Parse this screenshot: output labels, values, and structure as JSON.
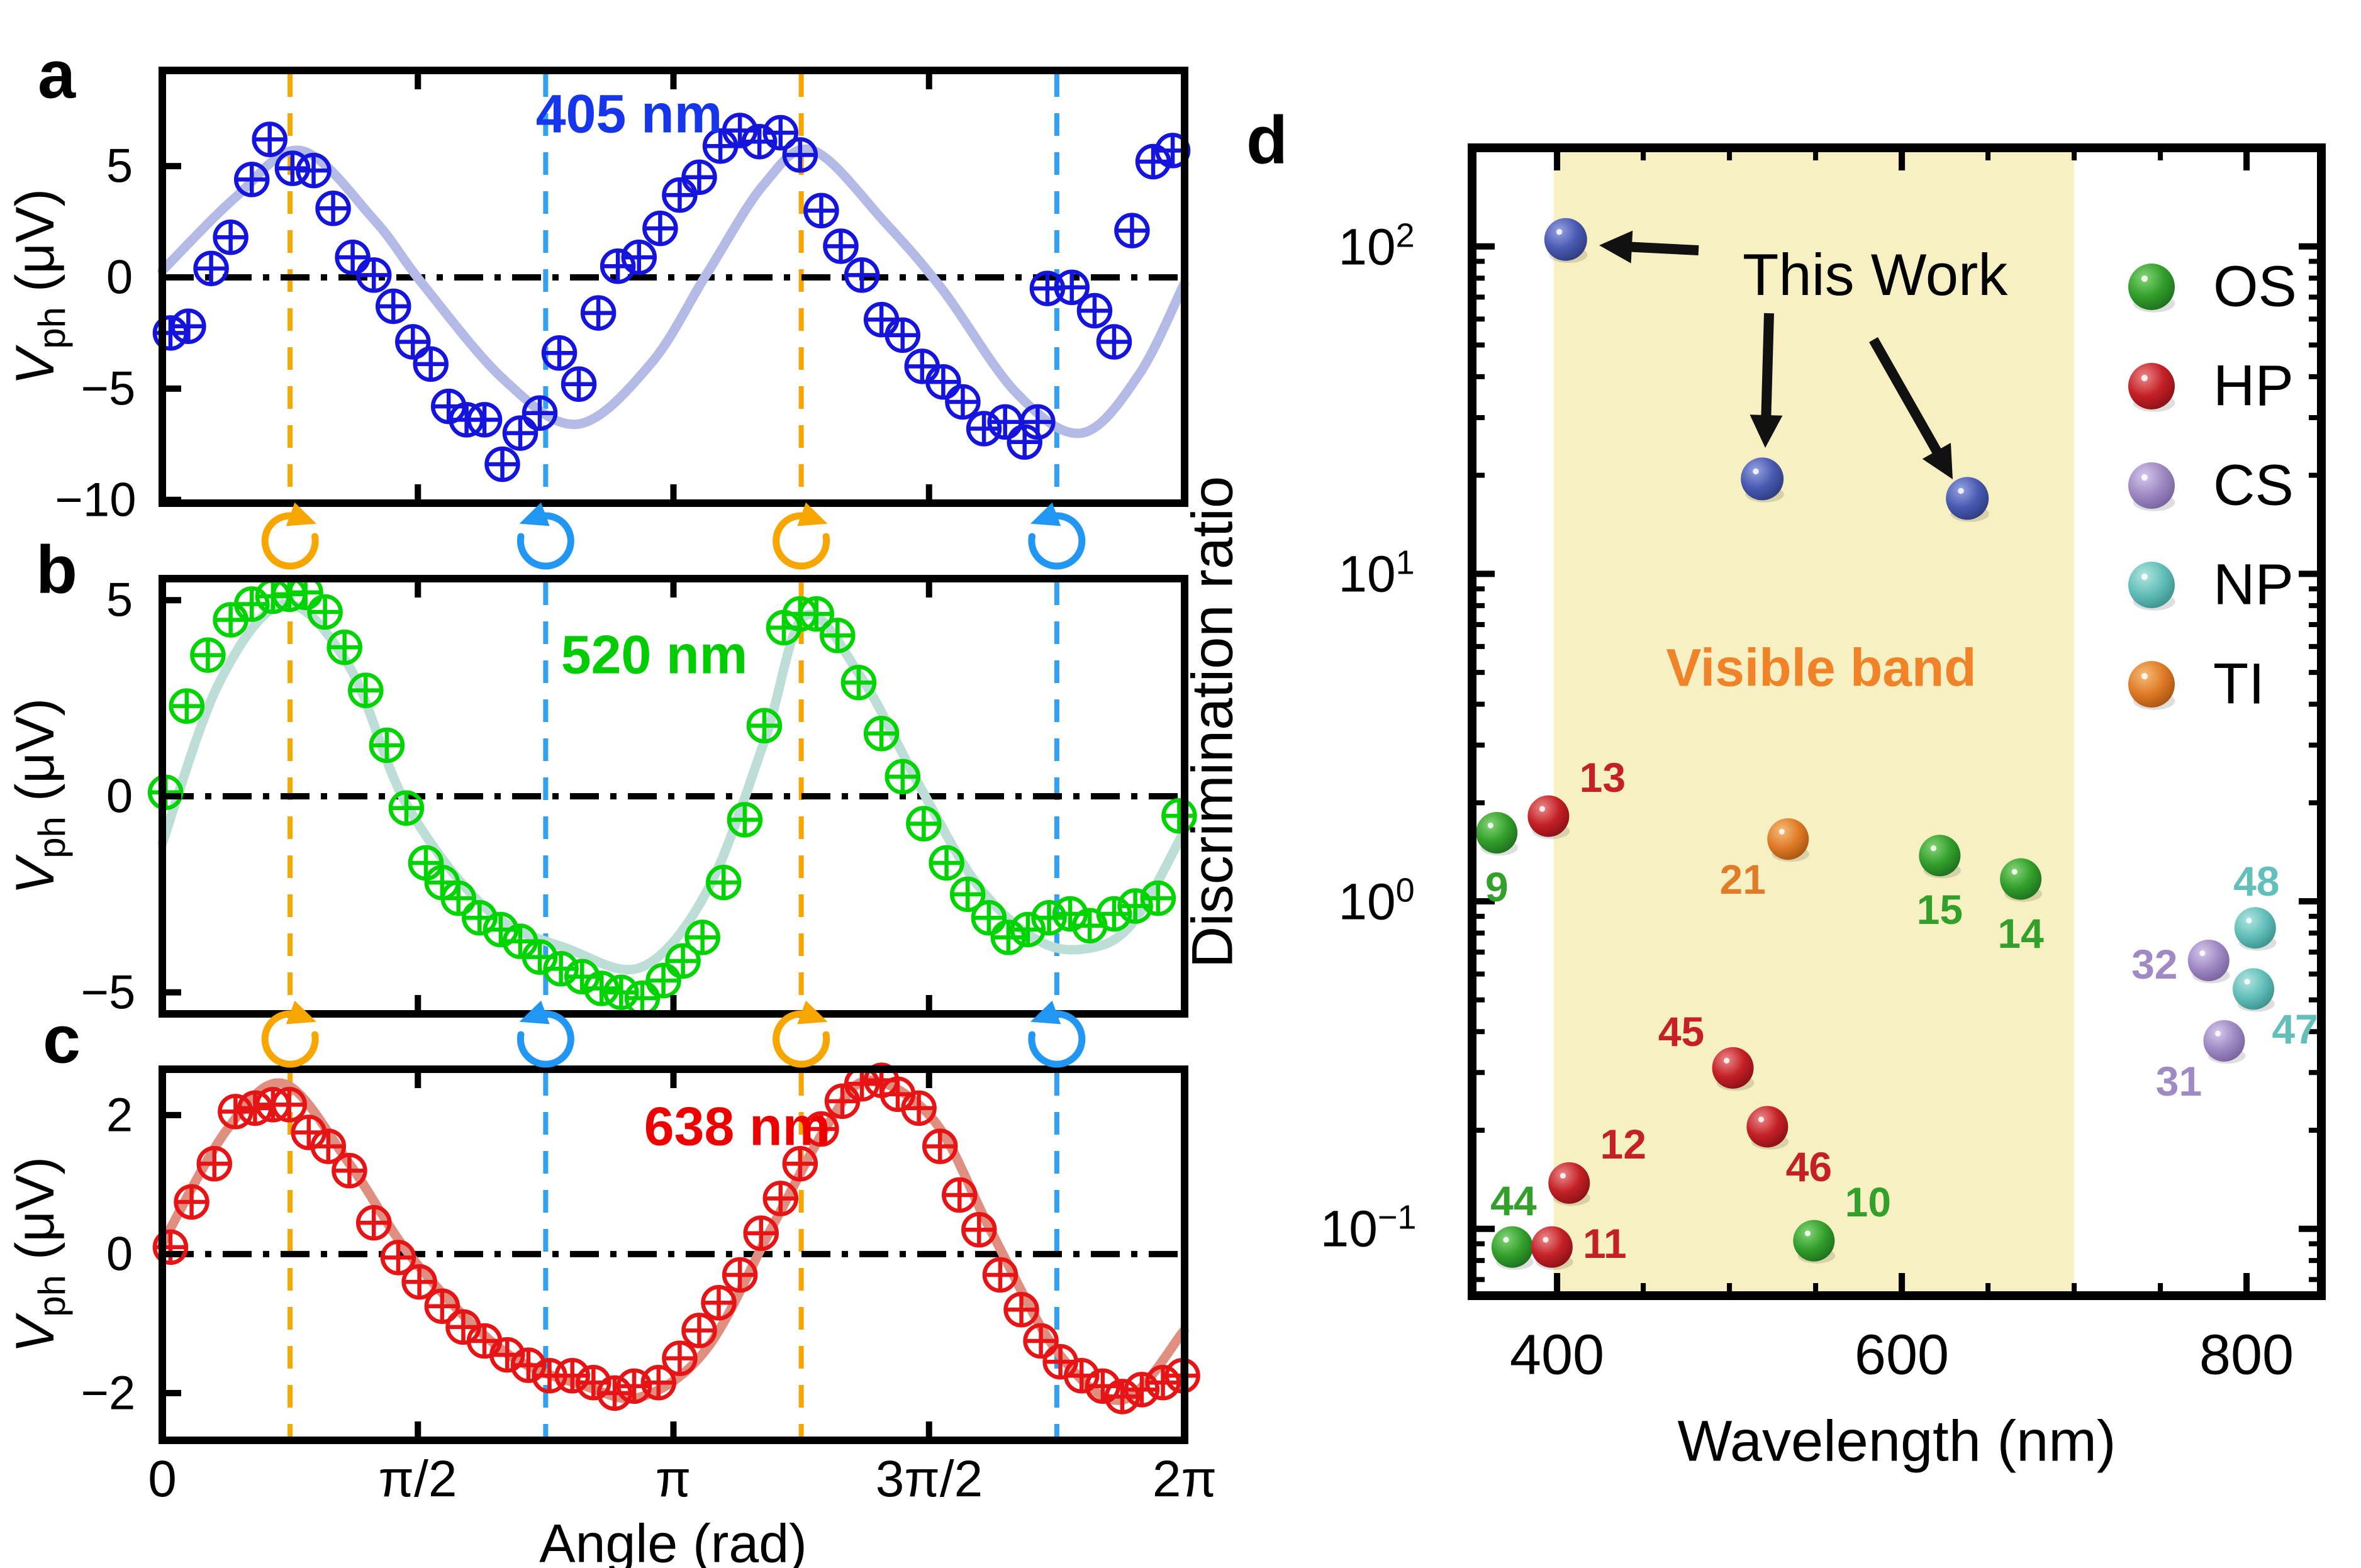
{
  "panel_letters": {
    "a": "a",
    "b": "b",
    "c": "c",
    "d": "d"
  },
  "ui": {
    "ylabel_v": "V",
    "ylabel_sub": "ph",
    "ylabel_unit": " (μV)",
    "angle_xlabel": "Angle (rad)",
    "wavelength_xlabel": "Wavelength (nm)",
    "discrimination_ylabel": "Discrimination ratio",
    "this_work_label": "This Work",
    "visible_band_label": "Visible band",
    "a_yticks": [
      "5",
      "0",
      "−5",
      "−10"
    ],
    "b_yticks": [
      "5",
      "0",
      "−5"
    ],
    "c_yticks": [
      "2",
      "0",
      "−2"
    ],
    "c_xticks": [
      "0",
      "π/2",
      "π",
      "3π/2",
      "2π"
    ],
    "d_xticks": [
      "400",
      "600",
      "800"
    ],
    "d_ytick_base": "10",
    "d_ytick_exponents": [
      "2",
      "1",
      "0",
      "−1"
    ],
    "legend": [
      "OS",
      "HP",
      "CS",
      "NP",
      "TI"
    ]
  },
  "chart_data": [
    {
      "id": "a",
      "type": "scatter+line",
      "title": "405 nm",
      "title_color": "#1536ea",
      "marker_color": "#1414dd",
      "curve_color": "#b4bae6",
      "xlabel": "Angle (rad)",
      "ylabel": "Vph (μV)",
      "xlim": [
        0,
        6.2832
      ],
      "ylim": [
        -10.15,
        9.3
      ],
      "yticks": [
        5,
        0,
        -5,
        -10
      ],
      "guide_orange_x": [
        0.7854,
        3.927
      ],
      "guide_blue_x": [
        2.3562,
        5.4978
      ],
      "points": [
        [
          0.05,
          -2.5
        ],
        [
          0.16,
          -2.2
        ],
        [
          0.3,
          0.4
        ],
        [
          0.42,
          1.8
        ],
        [
          0.55,
          4.4
        ],
        [
          0.66,
          6.2
        ],
        [
          0.8,
          4.9
        ],
        [
          0.93,
          4.8
        ],
        [
          1.05,
          3.1
        ],
        [
          1.17,
          0.9
        ],
        [
          1.3,
          0.1
        ],
        [
          1.42,
          -1.3
        ],
        [
          1.54,
          -2.9
        ],
        [
          1.65,
          -3.9
        ],
        [
          1.76,
          -5.8
        ],
        [
          1.87,
          -6.4
        ],
        [
          1.98,
          -6.4
        ],
        [
          2.09,
          -8.4
        ],
        [
          2.2,
          -7.0
        ],
        [
          2.32,
          -6.1
        ],
        [
          2.44,
          -3.4
        ],
        [
          2.56,
          -4.8
        ],
        [
          2.68,
          -1.6
        ],
        [
          2.8,
          0.5
        ],
        [
          2.93,
          0.9
        ],
        [
          3.06,
          2.2
        ],
        [
          3.18,
          3.7
        ],
        [
          3.3,
          4.5
        ],
        [
          3.43,
          5.9
        ],
        [
          3.55,
          6.6
        ],
        [
          3.67,
          6.1
        ],
        [
          3.8,
          6.5
        ],
        [
          3.92,
          5.5
        ],
        [
          4.05,
          3.0
        ],
        [
          4.17,
          1.4
        ],
        [
          4.3,
          0.1
        ],
        [
          4.42,
          -1.9
        ],
        [
          4.55,
          -2.6
        ],
        [
          4.67,
          -4.0
        ],
        [
          4.8,
          -4.7
        ],
        [
          4.92,
          -5.6
        ],
        [
          5.05,
          -6.8
        ],
        [
          5.18,
          -6.5
        ],
        [
          5.3,
          -7.4
        ],
        [
          5.38,
          -6.5
        ],
        [
          5.44,
          -0.5
        ],
        [
          5.59,
          -0.45
        ],
        [
          5.73,
          -1.5
        ],
        [
          5.85,
          -2.9
        ],
        [
          5.96,
          2.1
        ],
        [
          6.09,
          5.2
        ],
        [
          6.21,
          5.7
        ]
      ],
      "curve": [
        [
          0,
          0.3
        ],
        [
          0.45,
          3.6
        ],
        [
          0.85,
          5.7
        ],
        [
          1.3,
          2.6
        ],
        [
          1.6,
          -0.3
        ],
        [
          2.1,
          -4.6
        ],
        [
          2.55,
          -6.6
        ],
        [
          3.0,
          -3.9
        ],
        [
          3.35,
          0.2
        ],
        [
          3.7,
          4.2
        ],
        [
          4.0,
          5.7
        ],
        [
          4.45,
          2.4
        ],
        [
          4.8,
          -0.6
        ],
        [
          5.25,
          -5.2
        ],
        [
          5.65,
          -7.0
        ],
        [
          6.0,
          -4.4
        ],
        [
          6.28,
          -0.3
        ]
      ]
    },
    {
      "id": "b",
      "type": "scatter+line",
      "title": "520 nm",
      "title_color": "#00cc00",
      "marker_color": "#00d400",
      "curve_color": "#bcded6",
      "xlabel": "Angle (rad)",
      "ylabel": "Vph (μV)",
      "xlim": [
        0,
        6.2832
      ],
      "ylim": [
        -5.55,
        5.55
      ],
      "yticks": [
        5,
        0,
        -5
      ],
      "guide_orange_x": [
        0.7854,
        3.927
      ],
      "guide_blue_x": [
        2.3562,
        5.4978
      ],
      "points": [
        [
          0.02,
          0.1
        ],
        [
          0.15,
          2.3
        ],
        [
          0.28,
          3.6
        ],
        [
          0.42,
          4.5
        ],
        [
          0.55,
          4.9
        ],
        [
          0.68,
          5.1
        ],
        [
          0.78,
          5.15
        ],
        [
          0.88,
          5.2
        ],
        [
          1.0,
          4.7
        ],
        [
          1.12,
          3.8
        ],
        [
          1.25,
          2.7
        ],
        [
          1.38,
          1.3
        ],
        [
          1.5,
          -0.3
        ],
        [
          1.62,
          -1.7
        ],
        [
          1.72,
          -2.2
        ],
        [
          1.82,
          -2.6
        ],
        [
          1.95,
          -3.1
        ],
        [
          2.08,
          -3.4
        ],
        [
          2.2,
          -3.7
        ],
        [
          2.32,
          -4.1
        ],
        [
          2.45,
          -4.4
        ],
        [
          2.58,
          -4.6
        ],
        [
          2.7,
          -4.9
        ],
        [
          2.82,
          -5.0
        ],
        [
          2.95,
          -5.15
        ],
        [
          3.08,
          -4.7
        ],
        [
          3.2,
          -4.2
        ],
        [
          3.32,
          -3.6
        ],
        [
          3.45,
          -2.2
        ],
        [
          3.58,
          -0.6
        ],
        [
          3.7,
          1.8
        ],
        [
          3.82,
          4.3
        ],
        [
          3.92,
          4.65
        ],
        [
          4.02,
          4.65
        ],
        [
          4.15,
          4.1
        ],
        [
          4.28,
          2.9
        ],
        [
          4.42,
          1.6
        ],
        [
          4.55,
          0.5
        ],
        [
          4.68,
          -0.7
        ],
        [
          4.82,
          -1.7
        ],
        [
          4.95,
          -2.5
        ],
        [
          5.08,
          -3.1
        ],
        [
          5.2,
          -3.6
        ],
        [
          5.32,
          -3.4
        ],
        [
          5.45,
          -3.1
        ],
        [
          5.58,
          -3.0
        ],
        [
          5.7,
          -3.3
        ],
        [
          5.85,
          -3.0
        ],
        [
          5.98,
          -2.8
        ],
        [
          6.12,
          -2.6
        ],
        [
          6.25,
          -0.5
        ]
      ],
      "curve": [
        [
          0,
          -1.2
        ],
        [
          0.35,
          2.9
        ],
        [
          0.75,
          4.9
        ],
        [
          1.15,
          3.3
        ],
        [
          1.5,
          -0.2
        ],
        [
          2.0,
          -2.9
        ],
        [
          2.5,
          -3.9
        ],
        [
          2.95,
          -4.35
        ],
        [
          3.35,
          -2.4
        ],
        [
          3.7,
          1.4
        ],
        [
          3.95,
          4.6
        ],
        [
          4.3,
          3.0
        ],
        [
          4.65,
          0.3
        ],
        [
          5.0,
          -2.2
        ],
        [
          5.35,
          -3.6
        ],
        [
          5.65,
          -3.9
        ],
        [
          5.95,
          -3.3
        ],
        [
          6.28,
          -0.9
        ]
      ]
    },
    {
      "id": "c",
      "type": "scatter+line",
      "title": "638 nm",
      "title_color": "#ee0000",
      "marker_color": "#e61414",
      "curve_color": "#de8f7f",
      "xlabel": "Angle (rad)",
      "ylabel": "Vph (μV)",
      "xlim": [
        0,
        6.2832
      ],
      "ylim": [
        -2.68,
        2.66
      ],
      "yticks": [
        2,
        0,
        -2
      ],
      "xtick_values": [
        0,
        1.5708,
        3.1416,
        4.7124,
        6.2832
      ],
      "guide_orange_x": [
        0.7854,
        3.927
      ],
      "guide_blue_x": [
        2.3562,
        5.4978
      ],
      "points": [
        [
          0.05,
          0.1
        ],
        [
          0.18,
          0.75
        ],
        [
          0.32,
          1.3
        ],
        [
          0.45,
          2.05
        ],
        [
          0.57,
          2.1
        ],
        [
          0.68,
          2.15
        ],
        [
          0.78,
          2.15
        ],
        [
          0.9,
          1.75
        ],
        [
          1.02,
          1.55
        ],
        [
          1.15,
          1.2
        ],
        [
          1.3,
          0.45
        ],
        [
          1.45,
          -0.05
        ],
        [
          1.58,
          -0.4
        ],
        [
          1.72,
          -0.75
        ],
        [
          1.85,
          -1.05
        ],
        [
          1.98,
          -1.25
        ],
        [
          2.12,
          -1.45
        ],
        [
          2.25,
          -1.6
        ],
        [
          2.38,
          -1.75
        ],
        [
          2.52,
          -1.75
        ],
        [
          2.65,
          -1.85
        ],
        [
          2.78,
          -2.0
        ],
        [
          2.9,
          -1.9
        ],
        [
          3.05,
          -1.85
        ],
        [
          3.18,
          -1.5
        ],
        [
          3.3,
          -1.1
        ],
        [
          3.42,
          -0.7
        ],
        [
          3.55,
          -0.3
        ],
        [
          3.68,
          0.3
        ],
        [
          3.8,
          0.8
        ],
        [
          3.92,
          1.3
        ],
        [
          4.05,
          1.8
        ],
        [
          4.18,
          2.2
        ],
        [
          4.3,
          2.45
        ],
        [
          4.42,
          2.5
        ],
        [
          4.52,
          2.3
        ],
        [
          4.65,
          2.1
        ],
        [
          4.78,
          1.55
        ],
        [
          4.9,
          0.85
        ],
        [
          5.02,
          0.35
        ],
        [
          5.15,
          -0.3
        ],
        [
          5.28,
          -0.8
        ],
        [
          5.4,
          -1.25
        ],
        [
          5.52,
          -1.55
        ],
        [
          5.65,
          -1.75
        ],
        [
          5.78,
          -1.9
        ],
        [
          5.9,
          -2.05
        ],
        [
          6.02,
          -1.95
        ],
        [
          6.15,
          -1.85
        ],
        [
          6.27,
          -1.75
        ]
      ],
      "curve": [
        [
          0,
          0.15
        ],
        [
          0.4,
          1.8
        ],
        [
          0.75,
          2.45
        ],
        [
          1.15,
          1.3
        ],
        [
          1.55,
          -0.1
        ],
        [
          2.1,
          -1.4
        ],
        [
          2.6,
          -1.9
        ],
        [
          2.95,
          -2.05
        ],
        [
          3.35,
          -1.35
        ],
        [
          3.75,
          0.4
        ],
        [
          4.1,
          1.9
        ],
        [
          4.35,
          2.5
        ],
        [
          4.75,
          1.9
        ],
        [
          5.1,
          0.3
        ],
        [
          5.5,
          -1.4
        ],
        [
          5.9,
          -2.1
        ],
        [
          6.28,
          -1.1
        ]
      ]
    },
    {
      "id": "d",
      "type": "scatter",
      "title": "",
      "xlabel": "Wavelength (nm)",
      "ylabel": "Discrimination ratio",
      "xlim": [
        350.7,
        843.4
      ],
      "ylim": [
        0.0625,
        200
      ],
      "log_y": true,
      "xticks": [
        400,
        600,
        800
      ],
      "yticks": [
        100,
        10,
        1,
        0.1
      ],
      "band": {
        "range_nm": [
          398,
          700
        ],
        "label": "Visible band",
        "fill": "#f7f0c2",
        "label_color": "#f08228"
      },
      "this_work": {
        "label": "This Work",
        "color_name": "blue",
        "points": [
          [
            405,
            105
          ],
          [
            519,
            19.5
          ],
          [
            638,
            17
          ]
        ]
      },
      "series": [
        {
          "name": "OS",
          "color_name": "green",
          "color": "#33a02c",
          "points": [
            {
              "id": "9",
              "x": 365,
              "y": 1.62,
              "lp": "below"
            },
            {
              "id": "44",
              "x": 374,
              "y": 0.088,
              "lp": "above"
            },
            {
              "id": "10",
              "x": 549,
              "y": 0.092,
              "lp": "above-right"
            },
            {
              "id": "15",
              "x": 622,
              "y": 1.38,
              "lp": "below"
            },
            {
              "id": "14",
              "x": 669,
              "y": 1.17,
              "lp": "below"
            }
          ]
        },
        {
          "name": "HP",
          "color_name": "red",
          "color": "#c42127",
          "points": [
            {
              "id": "13",
              "x": 395,
              "y": 1.82,
              "lp": "above-right"
            },
            {
              "id": "12",
              "x": 407,
              "y": 0.138,
              "lp": "above-right"
            },
            {
              "id": "11",
              "x": 397,
              "y": 0.088,
              "lp": "right"
            },
            {
              "id": "45",
              "x": 502,
              "y": 0.31,
              "lp": "above-left"
            },
            {
              "id": "46",
              "x": 522,
              "y": 0.205,
              "lp": "below-right"
            }
          ]
        },
        {
          "name": "CS",
          "color_name": "purple",
          "color": "#9f8ac4",
          "points": [
            {
              "id": "32",
              "x": 778,
              "y": 0.66,
              "lp": "left"
            },
            {
              "id": "31",
              "x": 787,
              "y": 0.375,
              "lp": "below-left"
            }
          ]
        },
        {
          "name": "NP",
          "color_name": "teal",
          "color": "#63bfba",
          "points": [
            {
              "id": "48",
              "x": 805,
              "y": 0.83,
              "lp": "above"
            },
            {
              "id": "47",
              "x": 804,
              "y": 0.54,
              "lp": "below-right"
            }
          ]
        },
        {
          "name": "TI",
          "color_name": "orange",
          "color": "#e07b28",
          "points": [
            {
              "id": "21",
              "x": 534,
              "y": 1.55,
              "lp": "below-left"
            }
          ]
        }
      ],
      "annotation_arrows": [
        [
          2700,
          398,
          2542,
          390
        ],
        [
          2812,
          498,
          2806,
          712
        ],
        [
          2978,
          540,
          3104,
          762
        ]
      ]
    }
  ],
  "style_colors": {
    "guide_orange": "#f7a600",
    "guide_blue": "#33a0f0",
    "zero_line": "#000000",
    "rotation_cw": "#f7a600",
    "rotation_ccw": "#2196f3"
  }
}
